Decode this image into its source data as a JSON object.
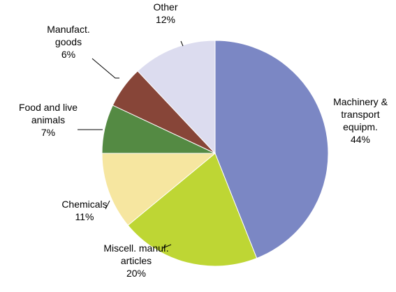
{
  "chart_data": {
    "type": "pie",
    "start": "12 o'clock",
    "direction": "clockwise",
    "slices": [
      {
        "lines": [
          "Machinery &",
          "transport",
          "equipm."
        ],
        "pct_label": "44%",
        "value": 44,
        "color": "#7b87c4"
      },
      {
        "lines": [
          "Miscell. manuf.",
          "articles"
        ],
        "pct_label": "20%",
        "value": 20,
        "color": "#bed634"
      },
      {
        "lines": [
          "Chemicals"
        ],
        "pct_label": "11%",
        "value": 11,
        "color": "#f6e6a0"
      },
      {
        "lines": [
          "Food and live",
          "animals"
        ],
        "pct_label": "7%",
        "value": 7,
        "color": "#548a43"
      },
      {
        "lines": [
          "Manufact.",
          "goods"
        ],
        "pct_label": "6%",
        "value": 6,
        "color": "#874538"
      },
      {
        "lines": [
          "Other"
        ],
        "pct_label": "12%",
        "value": 12,
        "color": "#dcdcef"
      }
    ]
  }
}
